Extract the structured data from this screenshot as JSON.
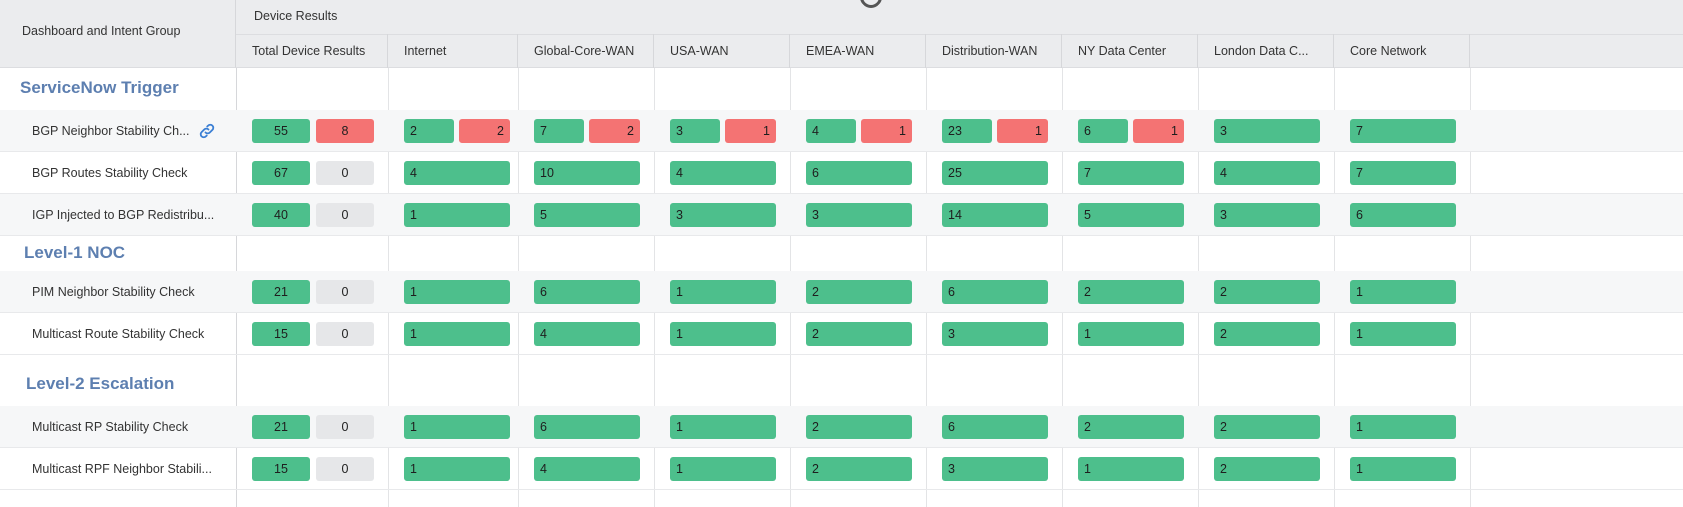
{
  "header": {
    "left_title": "Dashboard and Intent Group",
    "device_results": "Device Results",
    "columns": [
      "Total Device Results",
      "Internet",
      "Global-Core-WAN",
      "USA-WAN",
      "EMEA-WAN",
      "Distribution-WAN",
      "NY Data Center",
      "London Data C...",
      "Core Network"
    ]
  },
  "colors": {
    "success": "#4dbf8c",
    "fail": "#f47373",
    "neutral": "#e6e7e9",
    "group_title": "#5d7fb0"
  },
  "groups": [
    {
      "title": "ServiceNow Trigger",
      "rows": [
        {
          "label": "BGP Neighbor Stability Ch...",
          "has_link_icon": true,
          "total": [
            "55",
            "8"
          ],
          "cells": [
            [
              "2",
              "2"
            ],
            [
              "7",
              "2"
            ],
            [
              "3",
              "1"
            ],
            [
              "4",
              "1"
            ],
            [
              "23",
              "1"
            ],
            [
              "6",
              "1"
            ],
            [
              "3"
            ],
            [
              "7"
            ]
          ]
        },
        {
          "label": "BGP Routes Stability Check",
          "total": [
            "67",
            "0"
          ],
          "cells": [
            [
              "4"
            ],
            [
              "10"
            ],
            [
              "4"
            ],
            [
              "6"
            ],
            [
              "25"
            ],
            [
              "7"
            ],
            [
              "4"
            ],
            [
              "7"
            ]
          ]
        },
        {
          "label": "IGP Injected to BGP Redistribu...",
          "total": [
            "40",
            "0"
          ],
          "cells": [
            [
              "1"
            ],
            [
              "5"
            ],
            [
              "3"
            ],
            [
              "3"
            ],
            [
              "14"
            ],
            [
              "5"
            ],
            [
              "3"
            ],
            [
              "6"
            ]
          ]
        }
      ]
    },
    {
      "title": "Level-1 NOC",
      "rows": [
        {
          "label": "PIM Neighbor Stability Check",
          "total": [
            "21",
            "0"
          ],
          "cells": [
            [
              "1"
            ],
            [
              "6"
            ],
            [
              "1"
            ],
            [
              "2"
            ],
            [
              "6"
            ],
            [
              "2"
            ],
            [
              "2"
            ],
            [
              "1"
            ]
          ]
        },
        {
          "label": "Multicast Route Stability Check",
          "total": [
            "15",
            "0"
          ],
          "cells": [
            [
              "1"
            ],
            [
              "4"
            ],
            [
              "1"
            ],
            [
              "2"
            ],
            [
              "3"
            ],
            [
              "1"
            ],
            [
              "2"
            ],
            [
              "1"
            ]
          ]
        }
      ]
    },
    {
      "title": "Level-2 Escalation",
      "rows": [
        {
          "label": "Multicast RP Stability Check",
          "total": [
            "21",
            "0"
          ],
          "cells": [
            [
              "1"
            ],
            [
              "6"
            ],
            [
              "1"
            ],
            [
              "2"
            ],
            [
              "6"
            ],
            [
              "2"
            ],
            [
              "2"
            ],
            [
              "1"
            ]
          ]
        },
        {
          "label": "Multicast RPF Neighbor Stabili...",
          "total": [
            "15",
            "0"
          ],
          "cells": [
            [
              "1"
            ],
            [
              "4"
            ],
            [
              "1"
            ],
            [
              "2"
            ],
            [
              "3"
            ],
            [
              "1"
            ],
            [
              "2"
            ],
            [
              "1"
            ]
          ]
        }
      ]
    }
  ]
}
